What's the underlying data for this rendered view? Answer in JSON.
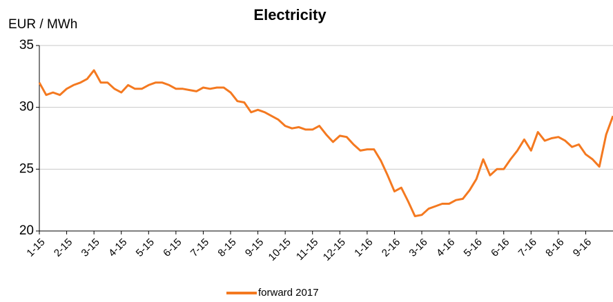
{
  "chart_data": {
    "type": "line",
    "title": "Electricity",
    "y_label": "EUR / MWh",
    "categories": [
      "1-15",
      null,
      null,
      null,
      "2-15",
      null,
      null,
      null,
      "3-15",
      null,
      null,
      null,
      "4-15",
      null,
      null,
      null,
      "5-15",
      null,
      null,
      null,
      "6-15",
      null,
      null,
      null,
      "7-15",
      null,
      null,
      null,
      "8-15",
      null,
      null,
      null,
      "9-15",
      null,
      null,
      null,
      "10-15",
      null,
      null,
      null,
      "11-15",
      null,
      null,
      null,
      "12-15",
      null,
      null,
      null,
      "1-16",
      null,
      null,
      null,
      "2-16",
      null,
      null,
      null,
      "3-16",
      null,
      null,
      null,
      "4-16",
      null,
      null,
      null,
      "5-16",
      null,
      null,
      null,
      "6-16",
      null,
      null,
      null,
      "7-16",
      null,
      null,
      null,
      "8-16",
      null,
      null,
      null,
      "9-16",
      null,
      null,
      null,
      null
    ],
    "series": [
      {
        "name": "forward 2017",
        "color": "#f47920",
        "values": [
          32,
          31,
          31.2,
          31,
          31.5,
          31.8,
          32,
          32.3,
          33,
          32,
          32,
          31.5,
          31.2,
          31.8,
          31.5,
          31.5,
          31.8,
          32,
          32,
          31.8,
          31.5,
          31.5,
          31.4,
          31.3,
          31.6,
          31.5,
          31.6,
          31.6,
          31.2,
          30.5,
          30.4,
          29.6,
          29.8,
          29.6,
          29.3,
          29,
          28.5,
          28.3,
          28.4,
          28.2,
          28.2,
          28.5,
          27.8,
          27.2,
          27.7,
          27.6,
          27,
          26.5,
          26.6,
          26.6,
          25.7,
          24.5,
          23.2,
          23.5,
          22.4,
          21.2,
          21.3,
          21.8,
          22,
          22.2,
          22.2,
          22.5,
          22.6,
          23.3,
          24.2,
          25.8,
          24.5,
          25,
          25,
          25.8,
          26.5,
          27.4,
          26.5,
          28,
          27.3,
          27.5,
          27.6,
          27.3,
          26.8,
          27,
          26.2,
          25.8,
          25.2,
          27.8,
          29.3
        ]
      }
    ],
    "ylim": [
      20,
      35
    ],
    "yticks": [
      20,
      25,
      30,
      35
    ],
    "grid": true,
    "legend": "bottom"
  }
}
